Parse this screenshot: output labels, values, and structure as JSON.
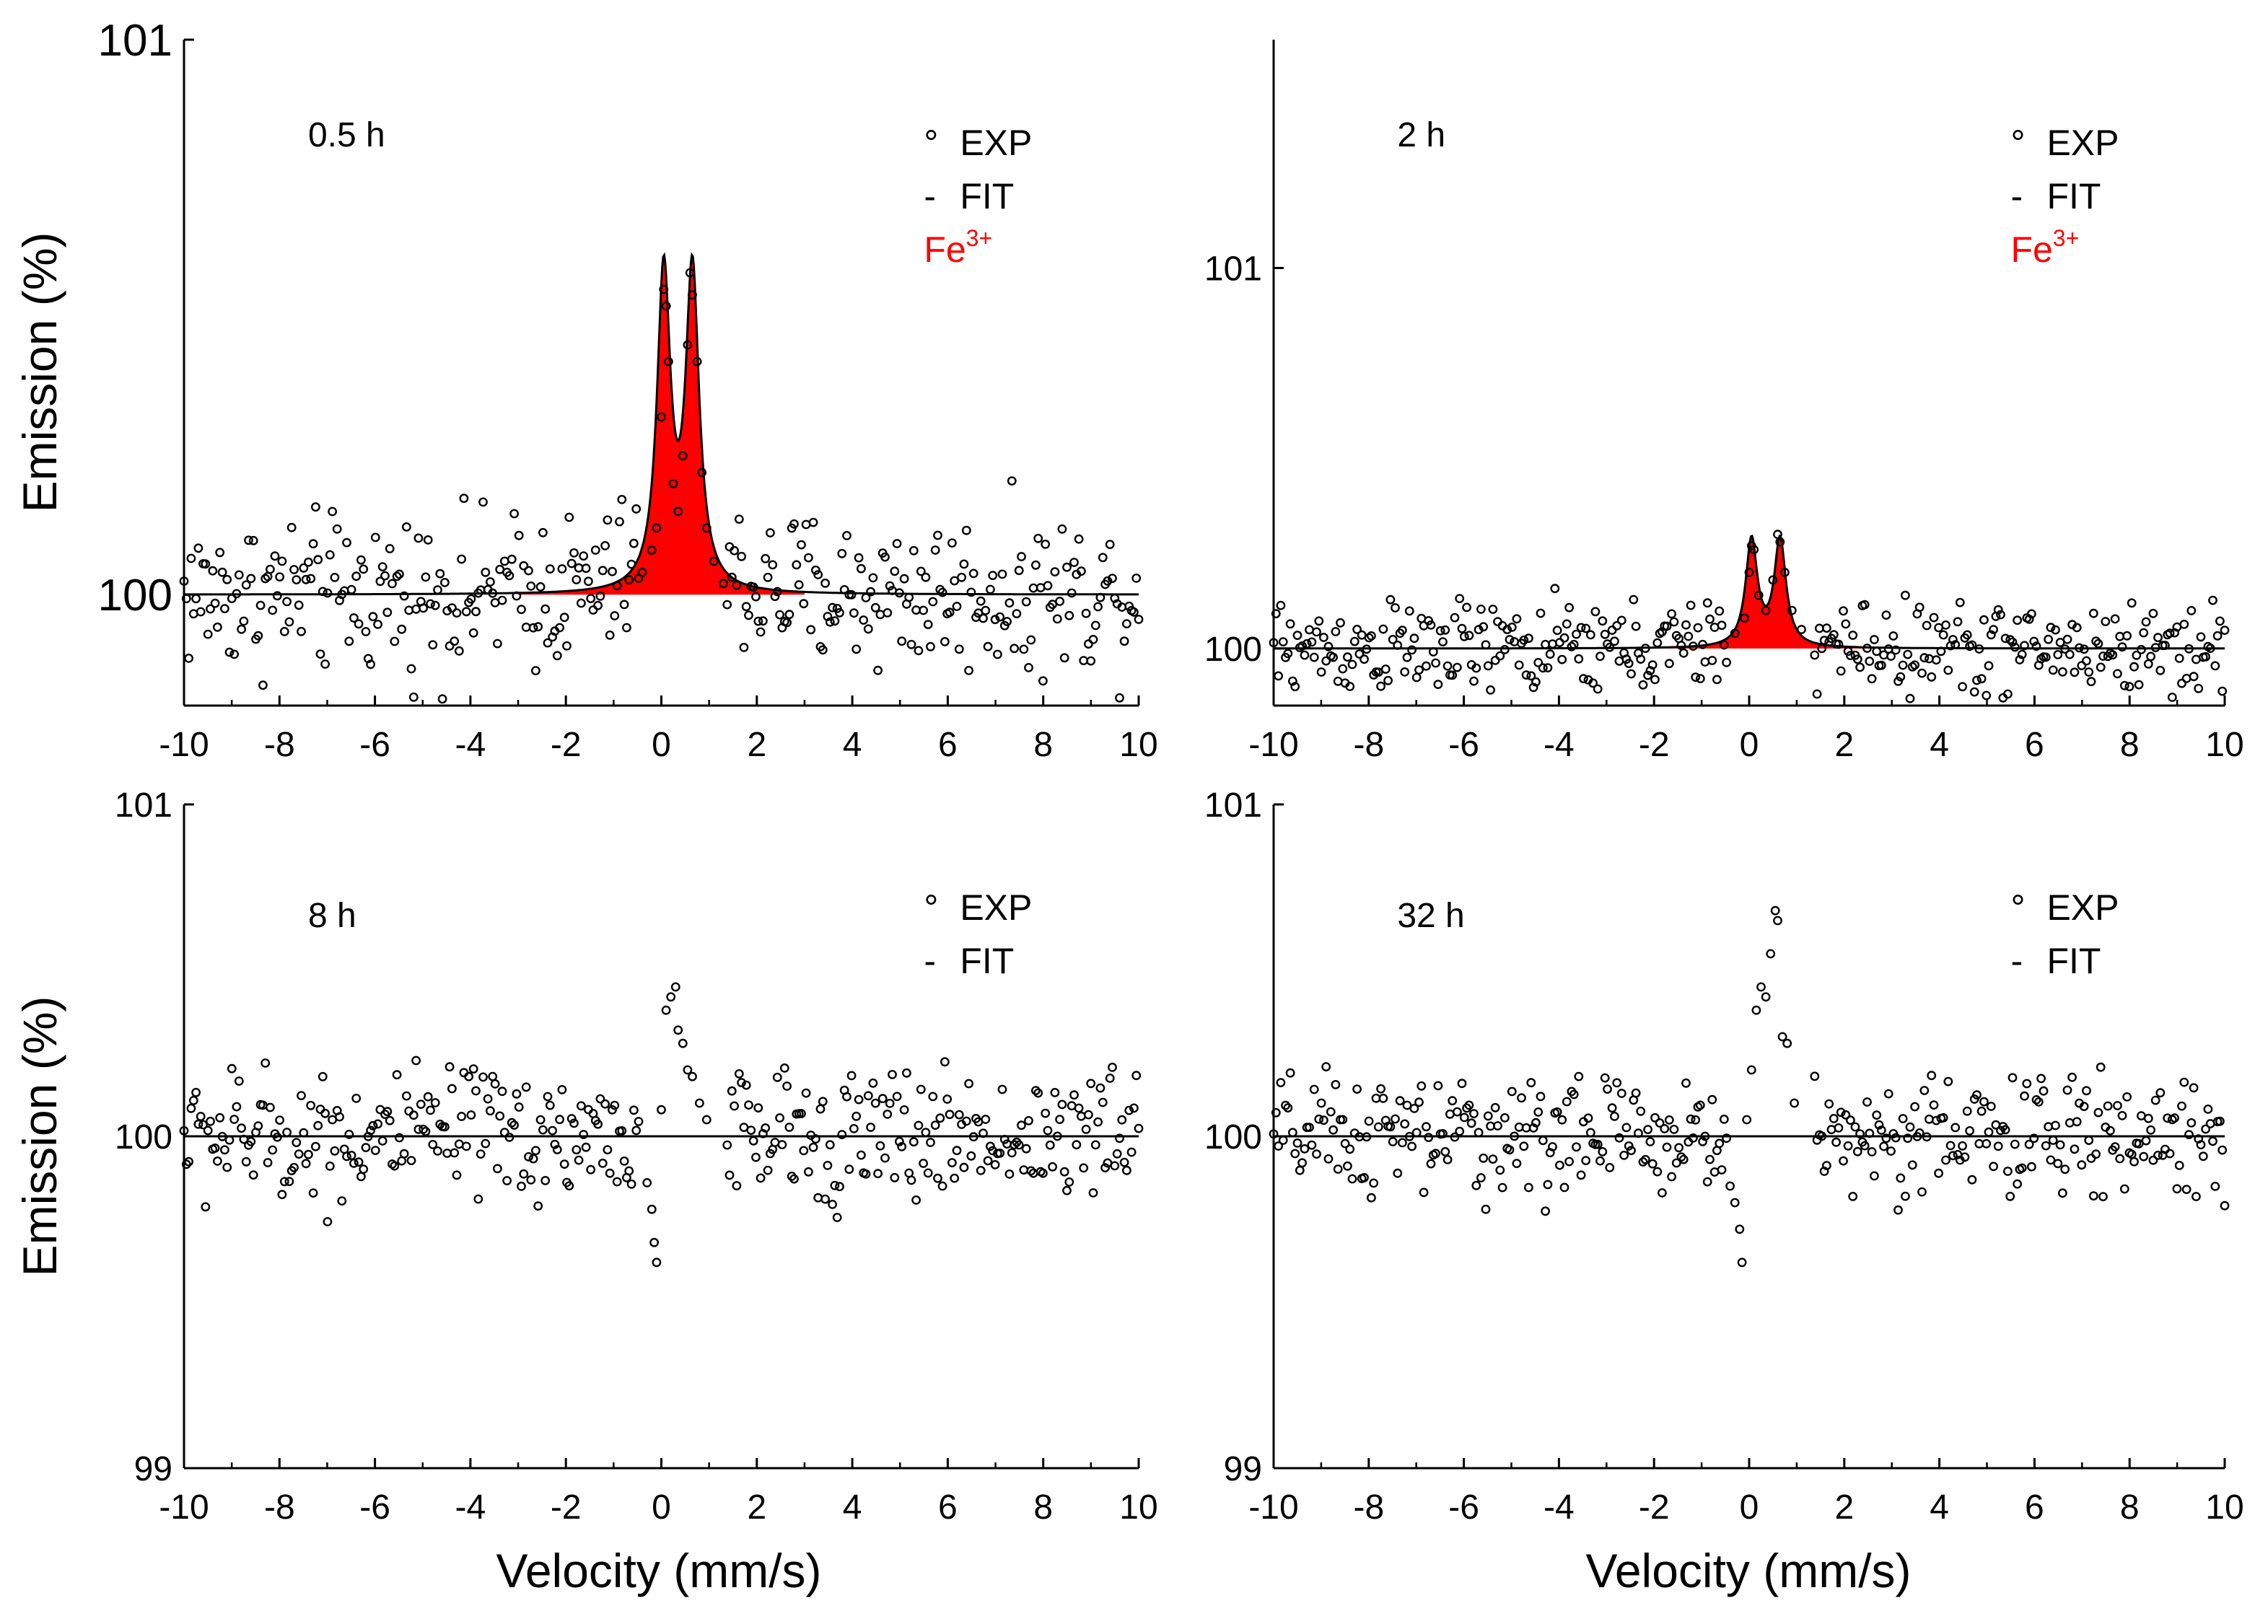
{
  "figure": {
    "shared_xlabel": "Velocity (mm/s)",
    "shared_ylabel": "Emission (%)"
  },
  "colors": {
    "axis": "#000000",
    "fit": "#000000",
    "fe3": "#ff0000",
    "marker": "#000000"
  },
  "chart_data": [
    {
      "type": "scatter",
      "panel": "top-left",
      "annotation": "0.5 h",
      "xlabel": "Velocity (mm/s)",
      "ylabel": "Emission (%)",
      "xlim": [
        -10,
        10
      ],
      "ylim": [
        99.8,
        101
      ],
      "xticks": [
        -10,
        -8,
        -6,
        -4,
        -2,
        0,
        2,
        4,
        6,
        8,
        10
      ],
      "yticks": [
        100,
        101
      ],
      "ytick_labels": [
        "100",
        "101"
      ],
      "legend": [
        {
          "symbol": "°",
          "label": "EXP",
          "kind": "exp"
        },
        {
          "symbol": "-",
          "label": "FIT",
          "kind": "fit"
        },
        {
          "label": "Fe",
          "sup": "3+",
          "kind": "fe3"
        }
      ],
      "baseline": 100,
      "noise_amplitude": 0.07,
      "fit_doublet": {
        "centers": [
          0.05,
          0.65
        ],
        "hwhm": 0.17,
        "height": 0.57
      },
      "peak_points": [
        [
          -0.4,
          100.04
        ],
        [
          -0.2,
          100.08
        ],
        [
          -0.1,
          100.12
        ],
        [
          0.0,
          100.32
        ],
        [
          0.05,
          100.55
        ],
        [
          0.1,
          100.52
        ],
        [
          0.15,
          100.42
        ],
        [
          0.25,
          100.2
        ],
        [
          0.35,
          100.15
        ],
        [
          0.45,
          100.25
        ],
        [
          0.55,
          100.45
        ],
        [
          0.6,
          100.58
        ],
        [
          0.65,
          100.54
        ],
        [
          0.75,
          100.42
        ],
        [
          0.85,
          100.22
        ],
        [
          0.95,
          100.12
        ],
        [
          1.1,
          100.06
        ],
        [
          1.3,
          100.02
        ]
      ],
      "series": [
        {
          "name": "EXP",
          "kind": "scatter"
        },
        {
          "name": "FIT",
          "kind": "line"
        },
        {
          "name": "Fe3+",
          "kind": "area"
        }
      ]
    },
    {
      "type": "scatter",
      "panel": "top-right",
      "annotation": "2 h",
      "xlabel": "Velocity (mm/s)",
      "ylabel": "Emission (%)",
      "xlim": [
        -10,
        10
      ],
      "ylim": [
        99.85,
        101.6
      ],
      "xticks": [
        -10,
        -8,
        -6,
        -4,
        -2,
        0,
        2,
        4,
        6,
        8,
        10
      ],
      "yticks": [
        100,
        101
      ],
      "ytick_labels": [
        "100",
        "101"
      ],
      "legend": [
        {
          "symbol": "°",
          "label": "EXP",
          "kind": "exp"
        },
        {
          "symbol": "-",
          "label": "FIT",
          "kind": "fit"
        },
        {
          "label": "Fe",
          "sup": "3+",
          "kind": "fe3"
        }
      ],
      "baseline": 100,
      "noise_amplitude": 0.06,
      "fit_doublet": {
        "centers": [
          0.05,
          0.65
        ],
        "hwhm": 0.15,
        "height": 0.28
      },
      "peak_points": [
        [
          -0.3,
          100.04
        ],
        [
          -0.1,
          100.08
        ],
        [
          0.0,
          100.2
        ],
        [
          0.05,
          100.27
        ],
        [
          0.1,
          100.26
        ],
        [
          0.2,
          100.14
        ],
        [
          0.35,
          100.1
        ],
        [
          0.5,
          100.18
        ],
        [
          0.6,
          100.3
        ],
        [
          0.65,
          100.28
        ],
        [
          0.75,
          100.2
        ],
        [
          0.9,
          100.1
        ],
        [
          1.1,
          100.05
        ]
      ],
      "series": [
        {
          "name": "EXP",
          "kind": "scatter"
        },
        {
          "name": "FIT",
          "kind": "line"
        },
        {
          "name": "Fe3+",
          "kind": "area"
        }
      ]
    },
    {
      "type": "scatter",
      "panel": "bottom-left",
      "annotation": "8 h",
      "xlabel": "Velocity (mm/s)",
      "ylabel": "Emission (%)",
      "xlim": [
        -10,
        10
      ],
      "ylim": [
        99,
        101
      ],
      "xticks": [
        -10,
        -8,
        -6,
        -4,
        -2,
        0,
        2,
        4,
        6,
        8,
        10
      ],
      "yticks": [
        99,
        100,
        101
      ],
      "ytick_labels": [
        "99",
        "100",
        "101"
      ],
      "legend": [
        {
          "symbol": "°",
          "label": "EXP",
          "kind": "exp"
        },
        {
          "symbol": "-",
          "label": "FIT",
          "kind": "fit"
        }
      ],
      "baseline": 100,
      "noise_amplitude": 0.1,
      "fit_doublet": null,
      "peak_points": [
        [
          -0.3,
          99.86
        ],
        [
          -0.2,
          99.78
        ],
        [
          -0.15,
          99.68
        ],
        [
          -0.1,
          99.62
        ],
        [
          0.0,
          100.08
        ],
        [
          0.1,
          100.38
        ],
        [
          0.2,
          100.42
        ],
        [
          0.3,
          100.45
        ],
        [
          0.35,
          100.32
        ],
        [
          0.45,
          100.28
        ],
        [
          0.55,
          100.2
        ],
        [
          0.65,
          100.18
        ],
        [
          0.8,
          100.1
        ],
        [
          0.95,
          100.05
        ]
      ],
      "series": [
        {
          "name": "EXP",
          "kind": "scatter"
        },
        {
          "name": "FIT",
          "kind": "line"
        }
      ]
    },
    {
      "type": "scatter",
      "panel": "bottom-right",
      "annotation": "32 h",
      "xlabel": "Velocity (mm/s)",
      "ylabel": "Emission (%)",
      "xlim": [
        -10,
        10
      ],
      "ylim": [
        99,
        101
      ],
      "xticks": [
        -10,
        -8,
        -6,
        -4,
        -2,
        0,
        2,
        4,
        6,
        8,
        10
      ],
      "yticks": [
        99,
        100,
        101
      ],
      "ytick_labels": [
        "99",
        "100",
        "101"
      ],
      "legend": [
        {
          "symbol": "°",
          "label": "EXP",
          "kind": "exp"
        },
        {
          "symbol": "-",
          "label": "FIT",
          "kind": "fit"
        }
      ],
      "baseline": 100,
      "noise_amplitude": 0.09,
      "fit_doublet": null,
      "peak_points": [
        [
          -0.4,
          99.85
        ],
        [
          -0.3,
          99.8
        ],
        [
          -0.2,
          99.72
        ],
        [
          -0.15,
          99.62
        ],
        [
          -0.05,
          100.05
        ],
        [
          0.05,
          100.2
        ],
        [
          0.15,
          100.38
        ],
        [
          0.25,
          100.45
        ],
        [
          0.35,
          100.42
        ],
        [
          0.45,
          100.55
        ],
        [
          0.55,
          100.68
        ],
        [
          0.6,
          100.65
        ],
        [
          0.7,
          100.3
        ],
        [
          0.8,
          100.28
        ],
        [
          0.95,
          100.1
        ]
      ],
      "series": [
        {
          "name": "EXP",
          "kind": "scatter"
        },
        {
          "name": "FIT",
          "kind": "line"
        }
      ]
    }
  ]
}
